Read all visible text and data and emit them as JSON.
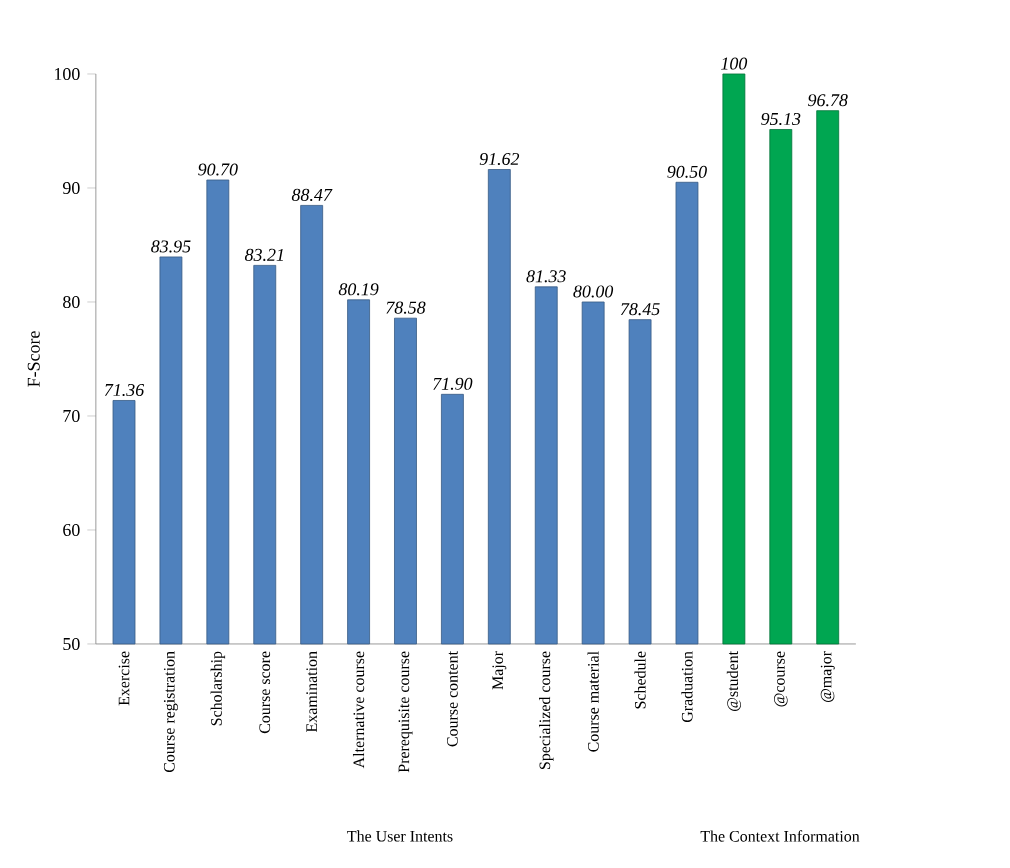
{
  "chart_data": {
    "type": "bar",
    "ylabel": "F-Score",
    "categories": [
      "Exercise",
      "Course registration",
      "Scholarship",
      "Course score",
      "Examination",
      "Alternative course",
      "Prerequisite course",
      "Course content",
      "Major",
      "Specialized course",
      "Course material",
      "Schedule",
      "Graduation",
      "@student",
      "@course",
      "@major"
    ],
    "values": [
      71.36,
      83.95,
      90.7,
      83.21,
      88.47,
      80.19,
      78.58,
      71.9,
      91.62,
      81.33,
      80.0,
      78.45,
      90.5,
      100,
      95.13,
      96.78
    ],
    "value_labels": [
      "71.36",
      "83.95",
      "90.70",
      "83.21",
      "88.47",
      "80.19",
      "78.58",
      "71.90",
      "91.62",
      "81.33",
      "80.00",
      "78.45",
      "90.50",
      "100",
      "95.13",
      "96.78"
    ],
    "colors": [
      "#4f81bd",
      "#4f81bd",
      "#4f81bd",
      "#4f81bd",
      "#4f81bd",
      "#4f81bd",
      "#4f81bd",
      "#4f81bd",
      "#4f81bd",
      "#4f81bd",
      "#4f81bd",
      "#4f81bd",
      "#4f81bd",
      "#00a651",
      "#00a651",
      "#00a651"
    ],
    "ylim": [
      50,
      100
    ],
    "yticks": [
      50,
      60,
      70,
      80,
      90,
      100
    ],
    "annotations": [
      "The User Intents",
      "The Context Information"
    ]
  }
}
